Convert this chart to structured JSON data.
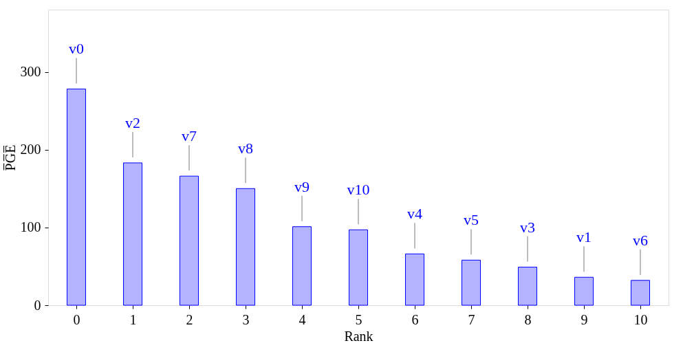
{
  "chart_data": {
    "type": "bar",
    "xlabel": "Rank",
    "ylabel": "P̅G̅E̅",
    "x": [
      0,
      1,
      2,
      3,
      4,
      5,
      6,
      7,
      8,
      9,
      10
    ],
    "values": [
      278,
      183,
      166,
      150,
      101,
      97,
      66,
      58,
      49,
      36,
      32
    ],
    "color": "#b3b3ff",
    "xlim": [
      -0.5,
      10.5
    ],
    "xticks": [
      0,
      1,
      2,
      3,
      4,
      5,
      6,
      7,
      8,
      9,
      10
    ],
    "ylim": [
      0,
      380
    ],
    "yticks": [
      0,
      100,
      200,
      300
    ],
    "grid": false,
    "annotations": [
      {
        "text": "v0",
        "x": 0,
        "y": 278
      },
      {
        "text": "v2",
        "x": 1,
        "y": 183
      },
      {
        "text": "v7",
        "x": 2,
        "y": 166
      },
      {
        "text": "v8",
        "x": 3,
        "y": 150
      },
      {
        "text": "v9",
        "x": 4,
        "y": 101
      },
      {
        "text": "v10",
        "x": 5,
        "y": 97
      },
      {
        "text": "v4",
        "x": 6,
        "y": 66
      },
      {
        "text": "v5",
        "x": 7,
        "y": 58
      },
      {
        "text": "v3",
        "x": 8,
        "y": 49
      },
      {
        "text": "v1",
        "x": 9,
        "y": 36
      },
      {
        "text": "v6",
        "x": 10,
        "y": 32
      }
    ]
  }
}
